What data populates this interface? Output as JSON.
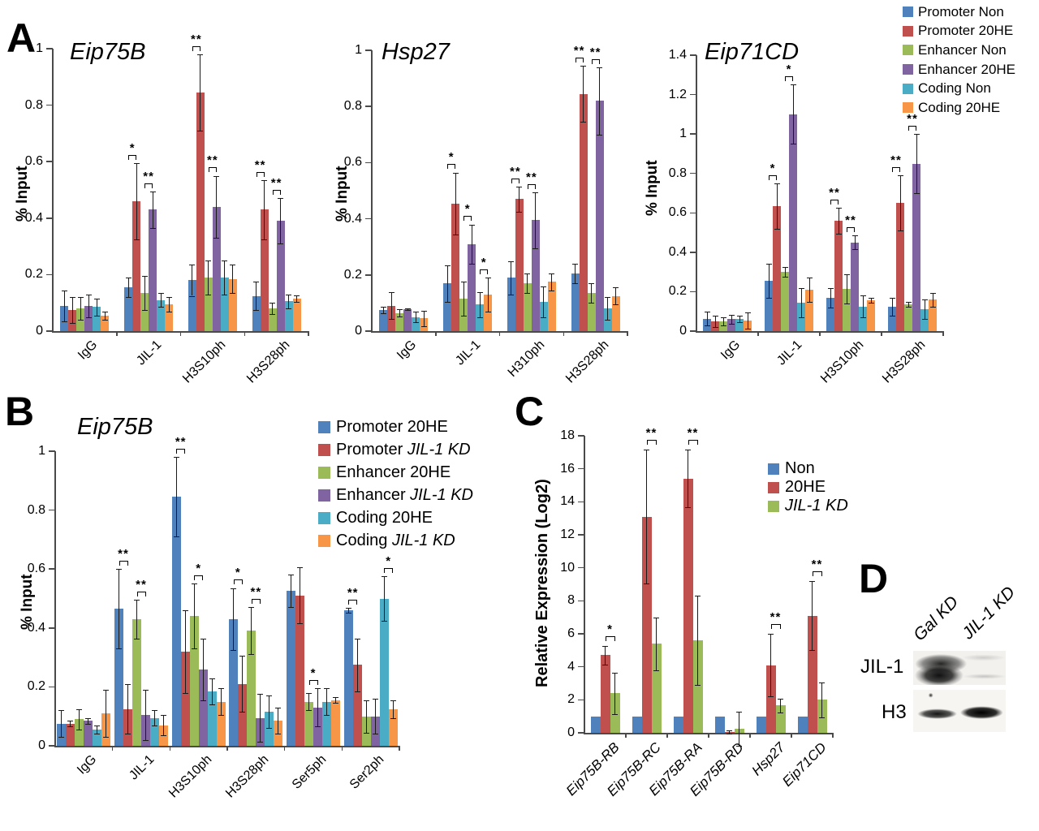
{
  "palette": {
    "blue": "#4F81BD",
    "red": "#C0504D",
    "green": "#9BBB59",
    "purple": "#8064A2",
    "teal": "#4BACC6",
    "orange": "#F79646"
  },
  "panels": {
    "A": {
      "label": "A"
    },
    "B": {
      "label": "B"
    },
    "C": {
      "label": "C"
    },
    "D": {
      "label": "D"
    }
  },
  "legends": {
    "A": {
      "items": [
        {
          "pre": "Promoter Non",
          "it": "",
          "color": "#4F81BD"
        },
        {
          "pre": "Promoter 20HE",
          "it": "",
          "color": "#C0504D"
        },
        {
          "pre": "Enhancer Non",
          "it": "",
          "color": "#9BBB59"
        },
        {
          "pre": "Enhancer 20HE",
          "it": "",
          "color": "#8064A2"
        },
        {
          "pre": "Coding Non",
          "it": "",
          "color": "#4BACC6"
        },
        {
          "pre": "Coding 20HE",
          "it": "",
          "color": "#F79646"
        }
      ]
    },
    "B": {
      "items": [
        {
          "pre": "Promoter 20HE",
          "it": "",
          "color": "#4F81BD"
        },
        {
          "pre": "Promoter ",
          "it": "JIL-1 KD",
          "color": "#C0504D"
        },
        {
          "pre": "Enhancer 20HE",
          "it": "",
          "color": "#9BBB59"
        },
        {
          "pre": "Enhancer ",
          "it": "JIL-1 KD",
          "color": "#8064A2"
        },
        {
          "pre": "Coding 20HE",
          "it": "",
          "color": "#4BACC6"
        },
        {
          "pre": "Coding ",
          "it": "JIL-1 KD",
          "color": "#F79646"
        }
      ]
    },
    "C": {
      "items": [
        {
          "pre": "Non",
          "it": "",
          "color": "#4F81BD"
        },
        {
          "pre": "20HE",
          "it": "",
          "color": "#C0504D"
        },
        {
          "pre": "",
          "it": "JIL-1 KD",
          "color": "#9BBB59"
        }
      ]
    }
  },
  "chart_data": [
    {
      "id": "A1",
      "type": "bar",
      "title": "Eip75B",
      "ylabel": "% Input",
      "ylim": [
        0,
        1
      ],
      "yticks": [
        0,
        0.2,
        0.4,
        0.6,
        0.8,
        1
      ],
      "xitalic": false,
      "sig_pad": 0.012,
      "categories": [
        "IgG",
        "JIL-1",
        "H3S10ph",
        "H3S28ph"
      ],
      "series": [
        {
          "name": "Promoter Non",
          "color": "#4F81BD",
          "values": [
            0.09,
            0.155,
            0.18,
            0.125
          ],
          "errors": [
            0.055,
            0.035,
            0.055,
            0.05
          ]
        },
        {
          "name": "Promoter 20HE",
          "color": "#C0504D",
          "values": [
            0.075,
            0.46,
            0.845,
            0.43
          ],
          "errors": [
            0.045,
            0.135,
            0.135,
            0.105
          ]
        },
        {
          "name": "Enhancer Non",
          "color": "#9BBB59",
          "values": [
            0.08,
            0.135,
            0.19,
            0.08
          ],
          "errors": [
            0.04,
            0.06,
            0.06,
            0.02
          ]
        },
        {
          "name": "Enhancer 20HE",
          "color": "#8064A2",
          "values": [
            0.09,
            0.43,
            0.44,
            0.39
          ],
          "errors": [
            0.04,
            0.065,
            0.11,
            0.08
          ]
        },
        {
          "name": "Coding Non",
          "color": "#4BACC6",
          "values": [
            0.085,
            0.11,
            0.19,
            0.105
          ],
          "errors": [
            0.03,
            0.025,
            0.06,
            0.025
          ]
        },
        {
          "name": "Coding 20HE",
          "color": "#F79646",
          "values": [
            0.055,
            0.095,
            0.185,
            0.115
          ],
          "errors": [
            0.015,
            0.025,
            0.05,
            0.012
          ]
        }
      ],
      "sig": [
        {
          "cat": 1,
          "pair": [
            0,
            1
          ],
          "label": "*"
        },
        {
          "cat": 1,
          "pair": [
            2,
            3
          ],
          "label": "**"
        },
        {
          "cat": 2,
          "pair": [
            0,
            1
          ],
          "label": "**"
        },
        {
          "cat": 2,
          "pair": [
            2,
            3
          ],
          "label": "**"
        },
        {
          "cat": 3,
          "pair": [
            0,
            1
          ],
          "label": "**"
        },
        {
          "cat": 3,
          "pair": [
            2,
            3
          ],
          "label": "**"
        }
      ]
    },
    {
      "id": "A2",
      "type": "bar",
      "title": "Hsp27",
      "ylabel": "% Input",
      "ylim": [
        0,
        1
      ],
      "yticks": [
        0,
        0.2,
        0.4,
        0.6,
        0.8,
        1
      ],
      "xitalic": false,
      "sig_pad": 0.012,
      "categories": [
        "IgG",
        "JIL-1",
        "H310ph",
        "H3S28ph"
      ],
      "series": [
        {
          "name": "Promoter Non",
          "color": "#4F81BD",
          "values": [
            0.075,
            0.17,
            0.19,
            0.205
          ],
          "errors": [
            0.012,
            0.065,
            0.06,
            0.035
          ]
        },
        {
          "name": "Promoter 20HE",
          "color": "#C0504D",
          "values": [
            0.09,
            0.455,
            0.47,
            0.845
          ],
          "errors": [
            0.048,
            0.11,
            0.045,
            0.1
          ]
        },
        {
          "name": "Enhancer Non",
          "color": "#9BBB59",
          "values": [
            0.065,
            0.115,
            0.17,
            0.135
          ],
          "errors": [
            0.012,
            0.06,
            0.035,
            0.035
          ]
        },
        {
          "name": "Enhancer 20HE",
          "color": "#8064A2",
          "values": [
            0.078,
            0.31,
            0.395,
            0.82
          ],
          "errors": [
            0.004,
            0.07,
            0.1,
            0.12
          ]
        },
        {
          "name": "Coding Non",
          "color": "#4BACC6",
          "values": [
            0.05,
            0.095,
            0.105,
            0.08
          ],
          "errors": [
            0.018,
            0.045,
            0.055,
            0.04
          ]
        },
        {
          "name": "Coding 20HE",
          "color": "#F79646",
          "values": [
            0.045,
            0.13,
            0.175,
            0.125
          ],
          "errors": [
            0.028,
            0.06,
            0.03,
            0.03
          ]
        }
      ],
      "sig": [
        {
          "cat": 1,
          "pair": [
            0,
            1
          ],
          "label": "*"
        },
        {
          "cat": 1,
          "pair": [
            2,
            3
          ],
          "label": "*"
        },
        {
          "cat": 1,
          "pair": [
            4,
            5
          ],
          "label": "*"
        },
        {
          "cat": 2,
          "pair": [
            0,
            1
          ],
          "label": "**"
        },
        {
          "cat": 2,
          "pair": [
            2,
            3
          ],
          "label": "**"
        },
        {
          "cat": 3,
          "pair": [
            0,
            1
          ],
          "label": "**"
        },
        {
          "cat": 3,
          "pair": [
            2,
            3
          ],
          "label": "**"
        }
      ]
    },
    {
      "id": "A3",
      "type": "bar",
      "title": "Eip71CD",
      "ylabel": "% Input",
      "ylim": [
        0,
        1.4
      ],
      "yticks": [
        0,
        0.2,
        0.4,
        0.6,
        0.8,
        1,
        1.2,
        1.4
      ],
      "xitalic": false,
      "sig_pad": 0.017,
      "categories": [
        "IgG",
        "JIL-1",
        "H3S10ph",
        "H3S28ph"
      ],
      "series": [
        {
          "name": "Promoter Non",
          "color": "#4F81BD",
          "values": [
            0.062,
            0.255,
            0.17,
            0.125
          ],
          "errors": [
            0.035,
            0.085,
            0.05,
            0.045
          ]
        },
        {
          "name": "Promoter 20HE",
          "color": "#C0504D",
          "values": [
            0.05,
            0.635,
            0.56,
            0.65
          ],
          "errors": [
            0.028,
            0.115,
            0.065,
            0.14
          ]
        },
        {
          "name": "Enhancer Non",
          "color": "#9BBB59",
          "values": [
            0.05,
            0.3,
            0.215,
            0.135
          ],
          "errors": [
            0.022,
            0.025,
            0.075,
            0.012
          ]
        },
        {
          "name": "Enhancer 20HE",
          "color": "#8064A2",
          "values": [
            0.06,
            1.1,
            0.45,
            0.85
          ],
          "errors": [
            0.022,
            0.15,
            0.035,
            0.15
          ]
        },
        {
          "name": "Coding Non",
          "color": "#4BACC6",
          "values": [
            0.062,
            0.145,
            0.125,
            0.11
          ],
          "errors": [
            0.015,
            0.075,
            0.055,
            0.05
          ]
        },
        {
          "name": "Coding 20HE",
          "color": "#F79646",
          "values": [
            0.053,
            0.21,
            0.155,
            0.16
          ],
          "errors": [
            0.04,
            0.06,
            0.012,
            0.035
          ]
        }
      ],
      "sig": [
        {
          "cat": 1,
          "pair": [
            0,
            1
          ],
          "label": "*"
        },
        {
          "cat": 1,
          "pair": [
            2,
            3
          ],
          "label": "*"
        },
        {
          "cat": 2,
          "pair": [
            0,
            1
          ],
          "label": "**"
        },
        {
          "cat": 2,
          "pair": [
            2,
            3
          ],
          "label": "**"
        },
        {
          "cat": 3,
          "pair": [
            0,
            1
          ],
          "label": "**"
        },
        {
          "cat": 3,
          "pair": [
            2,
            3
          ],
          "label": "**"
        }
      ]
    },
    {
      "id": "B",
      "type": "bar",
      "title": "Eip75B",
      "ylabel": "% Input",
      "ylim": [
        0,
        1
      ],
      "yticks": [
        0,
        0.2,
        0.4,
        0.6,
        0.8,
        1
      ],
      "xitalic": false,
      "sig_pad": 0.012,
      "categories": [
        "IgG",
        "JIL-1",
        "H3S10ph",
        "H3S28ph",
        "Ser5ph",
        "Ser2ph"
      ],
      "series": [
        {
          "name": "Promoter 20HE",
          "color": "#4F81BD",
          "values": [
            0.075,
            0.465,
            0.845,
            0.43,
            0.525,
            0.46
          ],
          "errors": [
            0.045,
            0.135,
            0.135,
            0.105,
            0.055,
            0.008
          ]
        },
        {
          "name": "Promoter JIL-1 KD",
          "color": "#C0504D",
          "values": [
            0.075,
            0.125,
            0.32,
            0.21,
            0.51,
            0.275
          ],
          "errors": [
            0.01,
            0.085,
            0.14,
            0.095,
            0.095,
            0.09
          ]
        },
        {
          "name": "Enhancer 20HE",
          "color": "#9BBB59",
          "values": [
            0.09,
            0.43,
            0.44,
            0.39,
            0.15,
            0.1
          ],
          "errors": [
            0.035,
            0.065,
            0.11,
            0.08,
            0.028,
            0.055
          ]
        },
        {
          "name": "Enhancer JIL-1 KD",
          "color": "#8064A2",
          "values": [
            0.085,
            0.105,
            0.26,
            0.095,
            0.13,
            0.1
          ],
          "errors": [
            0.01,
            0.085,
            0.105,
            0.08,
            0.065,
            0.06
          ]
        },
        {
          "name": "Coding 20HE",
          "color": "#4BACC6",
          "values": [
            0.055,
            0.095,
            0.185,
            0.115,
            0.15,
            0.5
          ],
          "errors": [
            0.015,
            0.025,
            0.045,
            0.055,
            0.045,
            0.075
          ]
        },
        {
          "name": "Coding JIL-1 KD",
          "color": "#F79646",
          "values": [
            0.11,
            0.07,
            0.15,
            0.085,
            0.155,
            0.125
          ],
          "errors": [
            0.08,
            0.035,
            0.045,
            0.045,
            0.01,
            0.03
          ]
        }
      ],
      "sig": [
        {
          "cat": 1,
          "pair": [
            0,
            1
          ],
          "label": "**"
        },
        {
          "cat": 1,
          "pair": [
            2,
            3
          ],
          "label": "**"
        },
        {
          "cat": 2,
          "pair": [
            0,
            1
          ],
          "label": "**"
        },
        {
          "cat": 2,
          "pair": [
            2,
            3
          ],
          "label": "*"
        },
        {
          "cat": 3,
          "pair": [
            0,
            1
          ],
          "label": "*"
        },
        {
          "cat": 3,
          "pair": [
            2,
            3
          ],
          "label": "**"
        },
        {
          "cat": 4,
          "pair": [
            2,
            3
          ],
          "label": "*"
        },
        {
          "cat": 5,
          "pair": [
            0,
            1
          ],
          "label": "**"
        },
        {
          "cat": 5,
          "pair": [
            4,
            5
          ],
          "label": "*"
        }
      ]
    },
    {
      "id": "C",
      "type": "bar",
      "title": "",
      "ylabel": "Relative Expression (Log2)",
      "ylim": [
        0,
        18
      ],
      "yticks": [
        0,
        2,
        4,
        6,
        8,
        10,
        12,
        14,
        16,
        18
      ],
      "xitalic": true,
      "sig_pad": 0.3,
      "categories": [
        "Eip75B-RB",
        "Eip75B-RC",
        "Eip75B-RA",
        "Eip75B-RD",
        "Hsp27",
        "Eip71CD"
      ],
      "series": [
        {
          "name": "Non",
          "color": "#4F81BD",
          "values": [
            1,
            1,
            1,
            1,
            1,
            1
          ],
          "errors": [
            0,
            0,
            0,
            0,
            0,
            0
          ]
        },
        {
          "name": "20HE",
          "color": "#C0504D",
          "values": [
            4.7,
            13.1,
            15.4,
            0.05,
            4.1,
            7.1
          ],
          "errors": [
            0.55,
            4.05,
            1.75,
            0.1,
            1.9,
            2.1
          ]
        },
        {
          "name": "JIL-1 KD",
          "color": "#9BBB59",
          "values": [
            2.4,
            5.4,
            5.6,
            0.25,
            1.65,
            2.0
          ],
          "errors": [
            1.25,
            1.6,
            2.7,
            1.05,
            0.4,
            1.05
          ]
        }
      ],
      "sig": [
        {
          "cat": 0,
          "pair": [
            1,
            2
          ],
          "label": "*"
        },
        {
          "cat": 1,
          "pair": [
            1,
            2
          ],
          "label": "**"
        },
        {
          "cat": 2,
          "pair": [
            1,
            2
          ],
          "label": "**"
        },
        {
          "cat": 4,
          "pair": [
            1,
            2
          ],
          "label": "**"
        },
        {
          "cat": 5,
          "pair": [
            1,
            2
          ],
          "label": "**"
        }
      ]
    }
  ],
  "panelD": {
    "lane_labels": [
      "Gal KD",
      "JIL-1 KD"
    ],
    "row_labels": [
      "JIL-1",
      "H3"
    ]
  }
}
